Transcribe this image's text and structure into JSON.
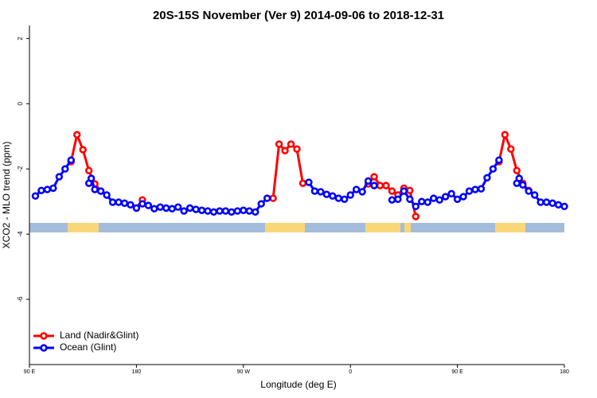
{
  "chart_data": {
    "type": "line",
    "title": "20S-15S November (Ver 9)   2014-09-06 to 2018-12-31",
    "x_label": "Longitude (deg E)",
    "y_label": "XCO2 - MLO trend (ppm)",
    "xlim": [
      90,
      540
    ],
    "ylim": [
      -8,
      2.4
    ],
    "xticks": [
      {
        "value": 90,
        "label": "90 E"
      },
      180,
      {
        "value": 270,
        "label": "90 W"
      },
      {
        "value": 360,
        "label": "0"
      },
      {
        "value": 450,
        "label": "90 E"
      },
      {
        "value": 540,
        "label": "180"
      }
    ],
    "yticks": [
      -6,
      -4,
      -2,
      0,
      2
    ],
    "legend": "bottom-left",
    "series": [
      {
        "name": "Land (Nadir&Glint)",
        "color": "#ff0000",
        "x": [
          125,
          130,
          135,
          140,
          145,
          150,
          165,
          180,
          185,
          190,
          295,
          300,
          305,
          310,
          315,
          320,
          330,
          375,
          380,
          385,
          390,
          395,
          400,
          405,
          410,
          415,
          420,
          485,
          490,
          495,
          500,
          505,
          510
        ],
        "values": [
          -1.78,
          -0.95,
          -1.41,
          -2.05,
          -2.46,
          -2.68,
          null,
          -3.2,
          -2.95,
          null,
          -2.9,
          -1.24,
          -1.44,
          -1.24,
          -1.39,
          -2.44,
          null,
          -2.46,
          -2.24,
          -2.51,
          -2.51,
          -2.68,
          -2.8,
          -2.59,
          -2.66,
          -3.46,
          null,
          -1.78,
          -0.95,
          -1.39,
          -2.05,
          -2.44,
          -2.66
        ]
      },
      {
        "name": "Ocean (Glint)",
        "color": "#0000ff",
        "x": [
          95,
          100,
          105,
          110,
          115,
          120,
          125,
          130,
          140,
          142,
          145,
          150,
          155,
          160,
          165,
          170,
          175,
          180,
          185,
          190,
          195,
          200,
          205,
          210,
          215,
          220,
          225,
          230,
          235,
          240,
          245,
          250,
          255,
          260,
          265,
          270,
          275,
          280,
          285,
          290,
          305,
          325,
          330,
          335,
          340,
          345,
          350,
          355,
          360,
          365,
          370,
          375,
          380,
          385,
          395,
          400,
          405,
          410,
          415,
          420,
          425,
          430,
          435,
          440,
          445,
          450,
          455,
          460,
          465,
          470,
          475,
          480,
          485,
          490,
          500,
          502,
          505,
          510,
          515,
          520,
          525,
          530,
          535,
          540
        ],
        "values": [
          -2.83,
          -2.66,
          -2.63,
          -2.59,
          -2.24,
          -2.0,
          -1.73,
          null,
          -2.44,
          -2.29,
          -2.63,
          -2.68,
          -2.8,
          -3.02,
          -3.02,
          -3.05,
          -3.1,
          -3.2,
          -3.07,
          -3.12,
          -3.22,
          -3.17,
          -3.2,
          -3.22,
          -3.17,
          -3.29,
          -3.2,
          -3.24,
          -3.27,
          -3.29,
          -3.32,
          -3.29,
          -3.29,
          -3.32,
          -3.29,
          -3.27,
          -3.29,
          -3.32,
          -3.07,
          -2.9,
          null,
          -2.41,
          -2.68,
          -2.7,
          -2.78,
          -2.83,
          -2.9,
          -2.93,
          -2.8,
          -2.63,
          -2.7,
          -2.37,
          -2.51,
          null,
          -2.95,
          -2.93,
          -2.68,
          -2.93,
          -3.15,
          -3.0,
          -3.02,
          -2.9,
          -2.95,
          -2.85,
          -2.76,
          -2.93,
          -2.85,
          -2.68,
          -2.63,
          -2.61,
          -2.27,
          -2.0,
          -1.73,
          null,
          -2.44,
          -2.29,
          -2.49,
          -2.68,
          -2.8,
          -3.02,
          -3.02,
          -3.05,
          -3.1,
          -3.15
        ]
      }
    ]
  }
}
